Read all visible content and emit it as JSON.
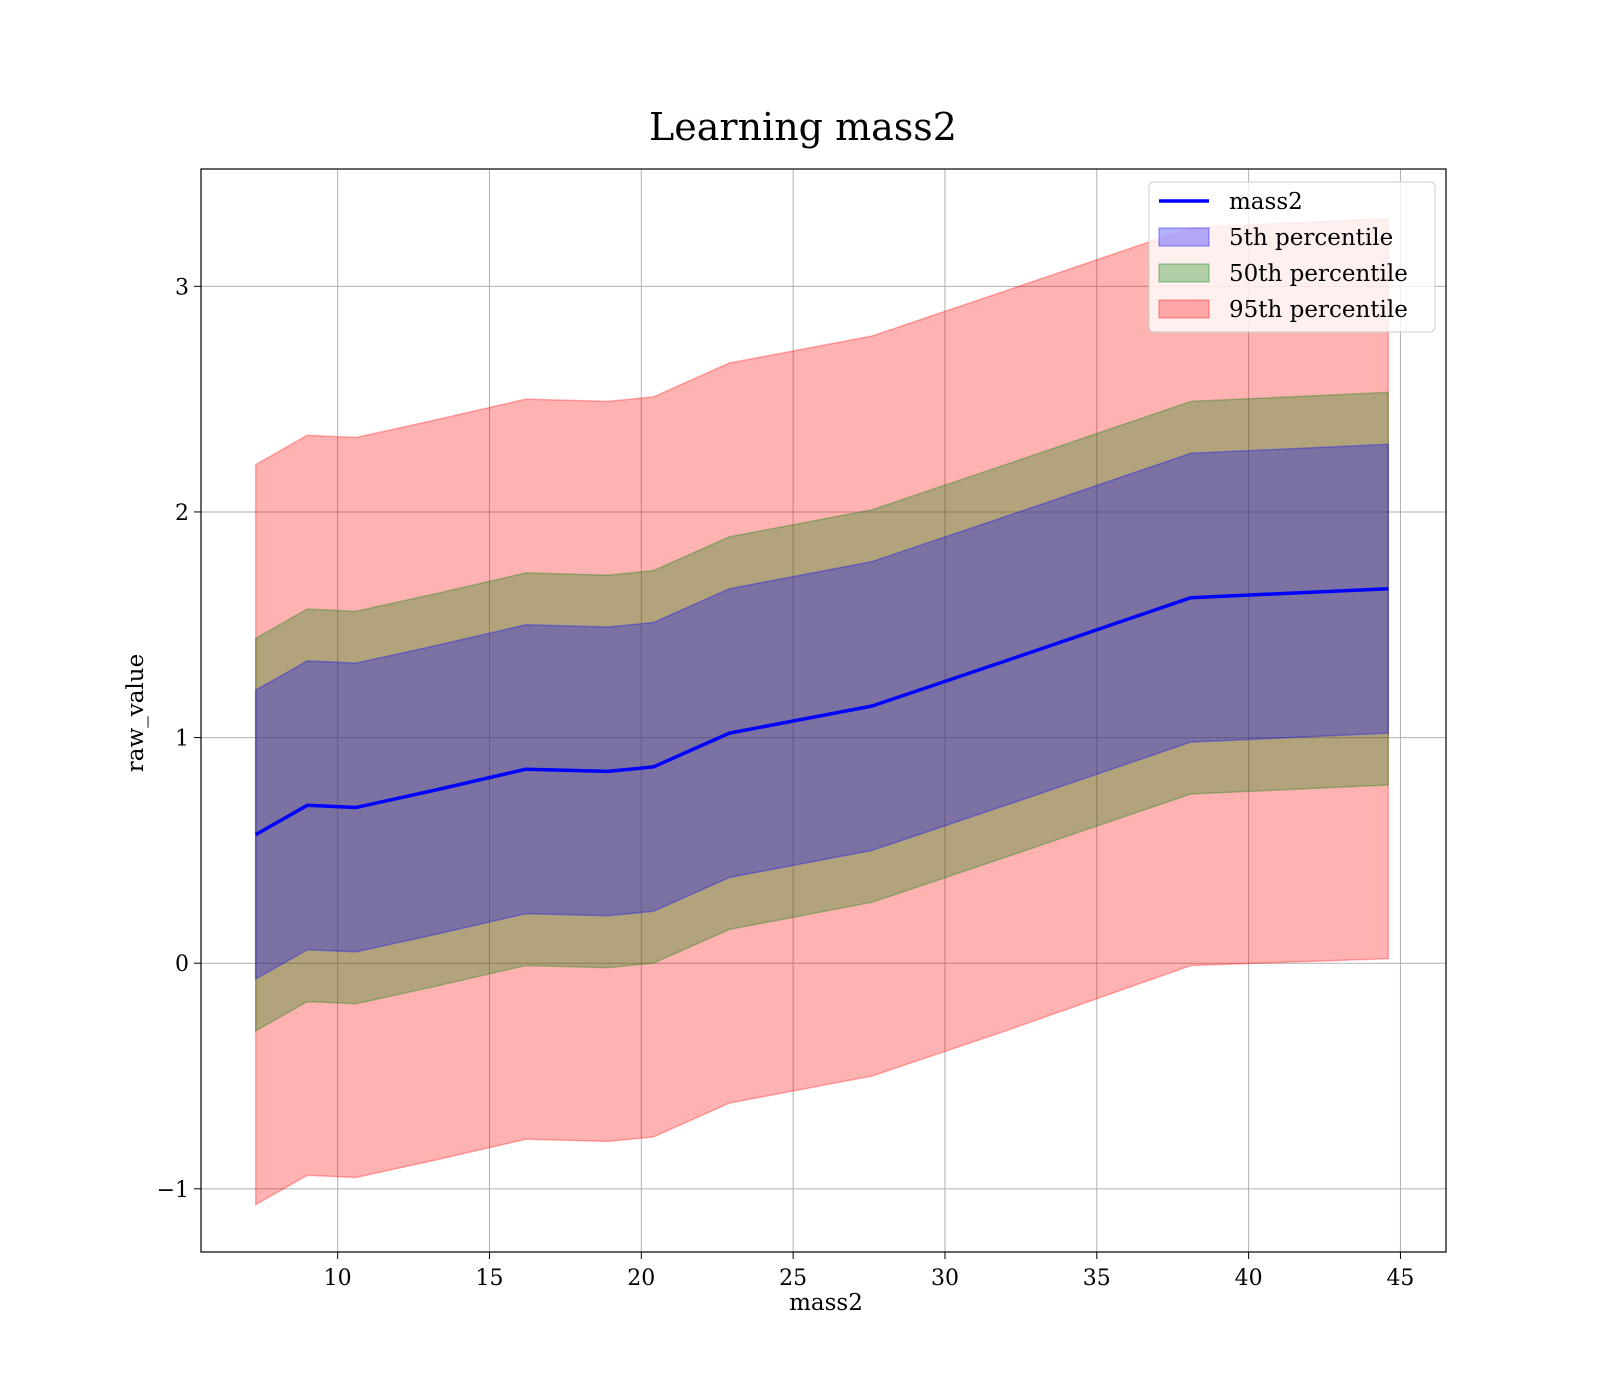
{
  "chart_data": {
    "type": "line",
    "title": "Learning mass2",
    "xlabel": "mass2",
    "ylabel": "raw_value",
    "xlim": [
      5.5,
      46.5
    ],
    "ylim": [
      -1.28,
      3.52
    ],
    "xticks": [
      10,
      15,
      20,
      25,
      30,
      35,
      40,
      45
    ],
    "yticks": [
      -1,
      0,
      1,
      2,
      3
    ],
    "ytick_labels": [
      "−1",
      "0",
      "1",
      "2",
      "3"
    ],
    "grid": true,
    "legend_position": "top-right",
    "x": [
      7.3,
      9.0,
      10.6,
      13.3,
      16.2,
      18.9,
      20.4,
      22.9,
      27.6,
      32.0,
      38.1,
      44.6
    ],
    "line": {
      "name": "mass2",
      "color": "#0000ff",
      "values": [
        0.57,
        0.7,
        0.69,
        0.77,
        0.86,
        0.85,
        0.87,
        1.02,
        1.14,
        1.34,
        1.62,
        1.66
      ]
    },
    "bands": [
      {
        "name": "95th percentile",
        "color": "#ff0000",
        "opacity": 0.3,
        "lower": [
          -1.07,
          -0.94,
          -0.95,
          -0.87,
          -0.78,
          -0.79,
          -0.77,
          -0.62,
          -0.5,
          -0.3,
          -0.01,
          0.02
        ],
        "upper": [
          2.21,
          2.34,
          2.33,
          2.41,
          2.5,
          2.49,
          2.51,
          2.66,
          2.78,
          2.98,
          3.26,
          3.3
        ]
      },
      {
        "name": "50th percentile",
        "color": "#008000",
        "opacity": 0.3,
        "lower": [
          -0.3,
          -0.17,
          -0.18,
          -0.1,
          -0.01,
          -0.02,
          0.0,
          0.15,
          0.27,
          0.47,
          0.75,
          0.79
        ],
        "upper": [
          1.44,
          1.57,
          1.56,
          1.64,
          1.73,
          1.72,
          1.74,
          1.89,
          2.01,
          2.21,
          2.49,
          2.53
        ]
      },
      {
        "name": "5th percentile",
        "color": "#0000ff",
        "opacity": 0.3,
        "lower": [
          -0.07,
          0.06,
          0.05,
          0.13,
          0.22,
          0.21,
          0.23,
          0.38,
          0.5,
          0.7,
          0.98,
          1.02
        ],
        "upper": [
          1.21,
          1.34,
          1.33,
          1.41,
          1.5,
          1.49,
          1.51,
          1.66,
          1.78,
          1.98,
          2.26,
          2.3
        ]
      }
    ],
    "legend": [
      {
        "label": "mass2",
        "kind": "line",
        "color": "#0000ff"
      },
      {
        "label": "5th percentile",
        "kind": "patch",
        "color": "#0000ff"
      },
      {
        "label": "50th percentile",
        "kind": "patch",
        "color": "#008000"
      },
      {
        "label": "95th percentile",
        "kind": "patch",
        "color": "#ff0000"
      }
    ]
  }
}
